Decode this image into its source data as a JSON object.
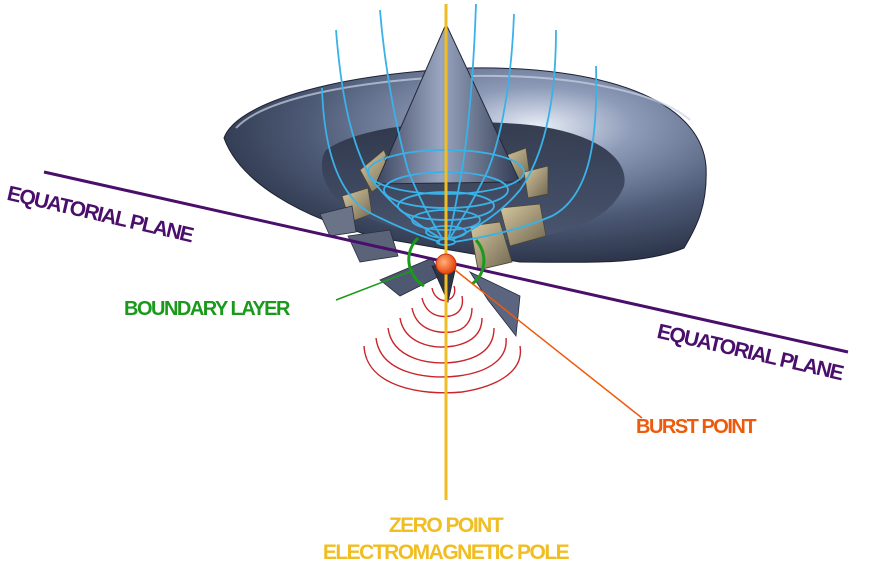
{
  "colors": {
    "equatorial_plane": "#4a0f6b",
    "boundary_layer": "#1a9a1a",
    "burst_point": "#ee5a0c",
    "zero_point": "#f0be22",
    "field_lines_upper": "#3ab2e8",
    "field_lines_lower": "#c8262a",
    "hull": "#5b6a87"
  },
  "labels": {
    "equatorial_plane_left": "EQUATORIAL PLANE",
    "equatorial_plane_right": "EQUATORIAL PLANE",
    "boundary_layer": "BOUNDARY LAYER",
    "burst_point": "BURST POINT",
    "zero_point": "ZERO POINT",
    "electromagnetic_pole": "ELECTROMAGNETIC POLE"
  }
}
